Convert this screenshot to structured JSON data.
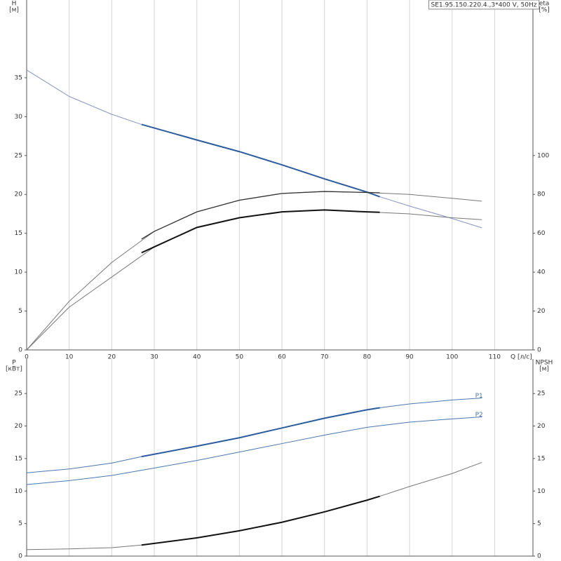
{
  "chart_data": [
    {
      "type": "line",
      "label": "SE1.95.150.220.4.,3*400 V, 50Hz",
      "x_label": "Q [л/с]",
      "y_label": "H",
      "y_unit": "[м]",
      "y2_label": "eta",
      "y2_unit": "[%]",
      "xlim": [
        0,
        119
      ],
      "xticks": [
        0,
        10,
        20,
        30,
        40,
        50,
        60,
        70,
        80,
        90,
        100,
        110
      ],
      "xtick_labels": true,
      "ylim": [
        0,
        45
      ],
      "yticks": [
        0,
        5,
        10,
        15,
        20,
        25,
        30,
        35
      ],
      "y2lim": [
        0,
        180
      ],
      "y2ticks": [
        0,
        20,
        40,
        60,
        80,
        100
      ],
      "grid": "x",
      "series": [
        {
          "color": "#8a93c4",
          "width": 1,
          "x": [
            0,
            10,
            20,
            27,
            40,
            50,
            60,
            70,
            80,
            83,
            90,
            100,
            107
          ],
          "values": [
            36,
            32.6,
            30.3,
            29,
            27,
            25.5,
            23.8,
            22,
            20.3,
            19.7,
            18.5,
            16.9,
            15.7
          ]
        },
        {
          "color": "#2b5c9e",
          "width": 2,
          "x": [
            27,
            40,
            50,
            60,
            70,
            80,
            83
          ],
          "values": [
            29,
            27,
            25.5,
            23.8,
            22,
            20.3,
            19.7
          ]
        },
        {
          "color": "#777777",
          "width": 1,
          "axis": "y2",
          "x": [
            0,
            10,
            20,
            30,
            40,
            50,
            60,
            70,
            80,
            90,
            100,
            107
          ],
          "values": [
            0,
            25,
            45,
            61,
            71,
            77,
            80.5,
            81.5,
            81,
            80,
            78,
            76.5
          ]
        },
        {
          "color": "#333333",
          "width": 1.3,
          "axis": "y2",
          "x": [
            27,
            30,
            40,
            50,
            60,
            70,
            80,
            83
          ],
          "values": [
            57,
            61,
            71,
            77,
            80.5,
            81.5,
            81,
            80.8
          ]
        },
        {
          "color": "#777777",
          "width": 1,
          "axis": "y2",
          "x": [
            0,
            10,
            20,
            30,
            40,
            50,
            60,
            70,
            80,
            90,
            100,
            107
          ],
          "values": [
            0,
            22,
            37.5,
            53,
            63,
            68,
            71,
            72,
            71,
            70,
            68,
            67
          ]
        },
        {
          "color": "#111111",
          "width": 2,
          "axis": "y2",
          "x": [
            27,
            30,
            40,
            50,
            60,
            70,
            80,
            83
          ],
          "values": [
            50,
            53,
            63,
            68,
            71,
            72,
            71,
            70.8
          ]
        }
      ]
    },
    {
      "type": "line",
      "y_label": "P",
      "y_unit": "[кВт]",
      "y2_label": "NPSH",
      "y2_unit": "[м]",
      "xlim": [
        0,
        119
      ],
      "xticks": [
        0,
        10,
        20,
        30,
        40,
        50,
        60,
        70,
        80,
        90,
        100,
        110
      ],
      "xtick_labels": false,
      "ylim": [
        0,
        30.3
      ],
      "yticks": [
        0,
        5,
        10,
        15,
        20,
        25
      ],
      "y2lim": [
        0,
        30.3
      ],
      "y2ticks": [
        0,
        5,
        10,
        15,
        20,
        25
      ],
      "grid": "x",
      "series": [
        {
          "name": "P1",
          "color": "#4a78b0",
          "width": 1,
          "x": [
            0,
            10,
            20,
            27,
            40,
            50,
            60,
            70,
            80,
            83,
            90,
            100,
            107
          ],
          "values": [
            12.8,
            13.4,
            14.3,
            15.3,
            16.9,
            18.2,
            19.7,
            21.2,
            22.5,
            22.8,
            23.4,
            24,
            24.3
          ]
        },
        {
          "color": "#2b5c9e",
          "width": 2,
          "x": [
            27,
            40,
            50,
            60,
            70,
            80,
            83
          ],
          "values": [
            15.3,
            16.9,
            18.2,
            19.7,
            21.2,
            22.5,
            22.8
          ]
        },
        {
          "name": "P2",
          "color": "#4a78b0",
          "width": 1,
          "x": [
            0,
            10,
            20,
            27,
            40,
            50,
            60,
            70,
            80,
            90,
            100,
            107
          ],
          "values": [
            11,
            11.6,
            12.4,
            13.2,
            14.7,
            16,
            17.3,
            18.6,
            19.8,
            20.6,
            21.1,
            21.4
          ]
        },
        {
          "color": "#777777",
          "width": 1,
          "axis": "y2",
          "x": [
            0,
            10,
            20,
            27,
            40,
            50,
            60,
            70,
            80,
            83,
            90,
            100,
            107
          ],
          "values": [
            1,
            1.1,
            1.3,
            1.7,
            2.8,
            3.9,
            5.2,
            6.8,
            8.6,
            9.2,
            10.7,
            12.7,
            14.4
          ]
        },
        {
          "color": "#111111",
          "width": 2,
          "axis": "y2",
          "x": [
            27,
            40,
            50,
            60,
            70,
            80,
            83
          ],
          "values": [
            1.7,
            2.8,
            3.9,
            5.2,
            6.8,
            8.6,
            9.2
          ]
        }
      ]
    }
  ]
}
